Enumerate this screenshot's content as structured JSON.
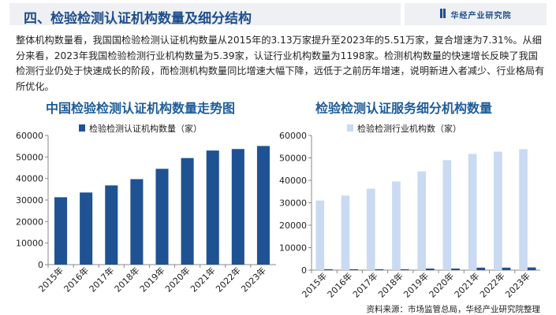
{
  "header": {
    "title": "四、检验检测认证机构数量及细分结构",
    "brand": "华经产业研究院"
  },
  "paragraph": "整体机构数量看，我国国检验检测认证机构数量从2015年的3.13万家提升至2023年的5.51万家，复合增速为7.31%。从细分来看，2023年我国检验检测行业机构数量为5.39家，认证行业机构数量为1198家。检测机构数量的快速增长反映了我国检测行业仍处于快速成长的阶段，而检测机构数量同比增速大幅下降，远低于之前历年增速，说明新进入者减少、行业格局有所优化。",
  "source": "资料来源：市场监管总局，华经产业研究院整理",
  "chart_data": [
    {
      "type": "bar",
      "title": "中国检验检测认证机构数量走势图",
      "categories": [
        "2015年",
        "2016年",
        "2017年",
        "2018年",
        "2019年",
        "2020年",
        "2021年",
        "2022年",
        "2023年"
      ],
      "series": [
        {
          "name": "检验检测认证机构数量（家）",
          "values": [
            31300,
            33500,
            36800,
            39700,
            44500,
            49500,
            53000,
            53700,
            55100
          ],
          "color": "#1f5293"
        }
      ],
      "yticks": [
        "0",
        "10000",
        "20000",
        "30000",
        "40000",
        "50000",
        "60000"
      ],
      "ylim": [
        0,
        60000
      ],
      "legend": "top",
      "grid": false
    },
    {
      "type": "bar",
      "title": "检验检测认证服务细分机构数量",
      "categories": [
        "2015年",
        "2016年",
        "2017年",
        "2018年",
        "2019年",
        "2020年",
        "2021年",
        "2022年",
        "2023年"
      ],
      "series": [
        {
          "name": "检验检测行业机构数（家）",
          "values": [
            31000,
            33200,
            36300,
            39500,
            44000,
            49000,
            51800,
            52800,
            53900
          ],
          "color": "#c9daf2"
        },
        {
          "values": [
            400,
            400,
            400,
            400,
            700,
            700,
            1100,
            1100,
            1198
          ],
          "color": "#1f5293"
        }
      ],
      "yticks": [
        "0",
        "10000",
        "20000",
        "30000",
        "40000",
        "50000",
        "60000"
      ],
      "ylim": [
        0,
        60000
      ],
      "legend": "top",
      "grid": false
    }
  ]
}
